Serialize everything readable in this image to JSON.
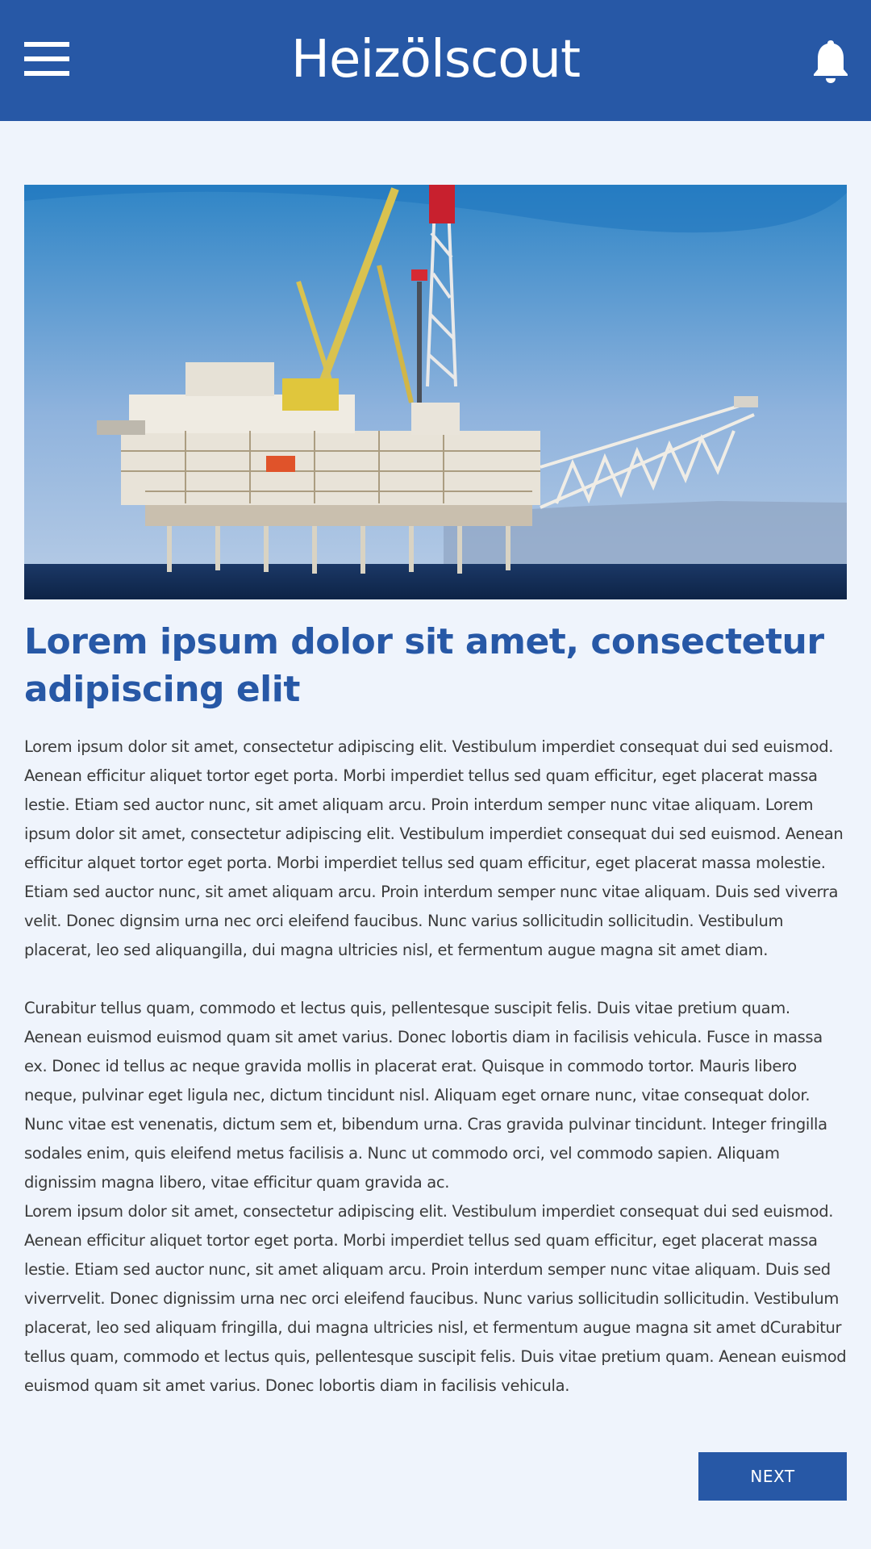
{
  "header": {
    "brand": "Heizölscout",
    "menu_icon": "hamburger-menu-icon",
    "notification_icon": "bell-icon",
    "background_color": "#2758a6"
  },
  "article": {
    "image": "offshore-oil-platform-photo",
    "headline": "Lorem ipsum dolor sit amet, consectetur adipiscing elit",
    "paragraphs": [
      "Lorem ipsum dolor sit amet, consectetur adipiscing elit. Vestibulum imperdiet consequat dui sed euismod. Aenean efficitur aliquet tortor eget porta. Morbi imperdiet tellus sed quam efficitur, eget placerat massa lestie. Etiam sed auctor nunc, sit amet aliquam arcu. Proin interdum semper nunc vitae aliquam. Lorem ipsum dolor sit amet, consectetur adipiscing elit. Vestibulum imperdiet consequat dui sed euismod. Aenean efficitur alquet tortor eget porta. Morbi imperdiet tellus sed quam efficitur, eget placerat massa molestie. Etiam sed auctor nunc, sit amet aliquam arcu. Proin interdum semper nunc vitae aliquam. Duis sed viverra velit. Donec dignsim urna nec orci eleifend faucibus. Nunc varius sollicitudin sollicitudin. Vestibulum placerat, leo sed aliquangilla, dui magna ultricies nisl, et fermentum augue magna sit amet diam.",
      "Curabitur tellus quam, commodo et lectus quis, pellentesque suscipit felis. Duis vitae pretium quam. Aenean euismod euismod quam sit amet varius. Donec lobortis diam in facilisis vehicula. Fusce in massa ex. Donec id tellus ac neque gravida mollis in placerat erat. Quisque in commodo tortor. Mauris libero neque, pulvinar eget ligula nec, dictum tincidunt nisl. Aliquam eget ornare nunc, vitae consequat dolor. Nunc vitae est venenatis, dictum sem et, bibendum urna. Cras gravida pulvinar tincidunt. Integer fringilla sodales enim, quis eleifend metus facilisis a. Nunc ut commodo orci, vel commodo sapien. Aliquam dignissim magna libero, vitae efficitur quam gravida ac.",
      "Lorem ipsum dolor sit amet, consectetur adipiscing elit. Vestibulum imperdiet consequat dui sed euismod. Aenean efficitur aliquet tortor eget porta. Morbi imperdiet tellus sed quam efficitur, eget placerat massa lestie. Etiam sed auctor nunc, sit amet aliquam arcu. Proin interdum semper nunc vitae aliquam. Duis sed viverrvelit. Donec dignissim urna nec orci eleifend faucibus. Nunc varius sollicitudin sollicitudin. Vestibulum placerat, leo sed aliquam fringilla, dui magna ultricies nisl, et fermentum augue magna sit amet dCurabitur tellus quam, commodo et lectus quis, pellentesque suscipit felis. Duis vitae pretium quam. Aenean euismod euismod quam sit amet varius. Donec lobortis diam in facilisis vehicula."
    ],
    "headline_color": "#2758a6"
  },
  "footer": {
    "next_label": "NEXT"
  }
}
